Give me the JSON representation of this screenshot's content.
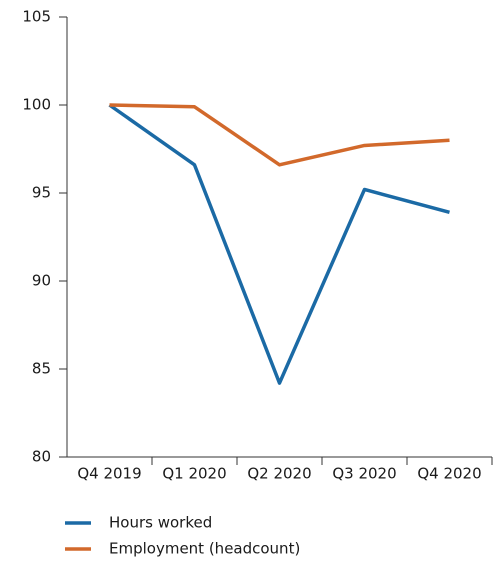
{
  "chart_data": {
    "type": "line",
    "categories": [
      "Q4 2019",
      "Q1 2020",
      "Q2 2020",
      "Q3 2020",
      "Q4 2020"
    ],
    "series": [
      {
        "name": "Hours worked",
        "color": "#1b6aa5",
        "values": [
          100,
          96.6,
          84.2,
          95.2,
          93.9
        ]
      },
      {
        "name": "Employment (headcount)",
        "color": "#d2692b",
        "values": [
          100,
          99.9,
          96.6,
          97.7,
          98.0
        ]
      }
    ],
    "ylim": [
      80,
      105
    ],
    "yticks": [
      80,
      85,
      90,
      95,
      100,
      105
    ],
    "grid": false,
    "legend": "bottom"
  }
}
